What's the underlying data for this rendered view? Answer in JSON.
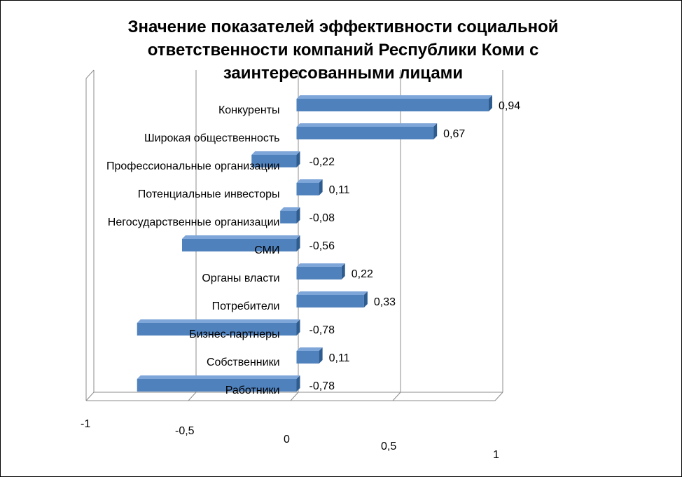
{
  "chart_data": {
    "type": "bar",
    "orientation": "horizontal",
    "title": "Значение показателей эффективности социальной ответственности компаний Республики Коми с заинтересованными лицами",
    "categories": [
      "Конкуренты",
      "Широкая общественность",
      "Профессиональные организации",
      "Потенциальные инвесторы",
      "Негосударственные организации",
      "СМИ",
      "Органы власти",
      "Потребители",
      "Бизнес-партнеры",
      "Собственники",
      "Работники"
    ],
    "values": [
      0.94,
      0.67,
      -0.22,
      0.11,
      -0.08,
      -0.56,
      0.22,
      0.33,
      -0.78,
      0.11,
      -0.78
    ],
    "value_labels": [
      "0,94",
      "0,67",
      "-0,22",
      "0,11",
      "-0,08",
      "-0,56",
      "0,22",
      "0,33",
      "-0,78",
      "0,11",
      "-0,78"
    ],
    "xlim": [
      -1,
      1
    ],
    "x_ticks": [
      -1,
      -0.5,
      0,
      0.5,
      1
    ],
    "x_tick_labels": [
      "-1",
      "-0,5",
      "0",
      "0,5",
      "1"
    ],
    "xlabel": "",
    "ylabel": "",
    "grid": true,
    "legend": "none",
    "style": "3d",
    "colors": {
      "bar_front": "#4F81BD",
      "bar_top": "#7EA6D9",
      "bar_side": "#2F5C8F"
    }
  }
}
